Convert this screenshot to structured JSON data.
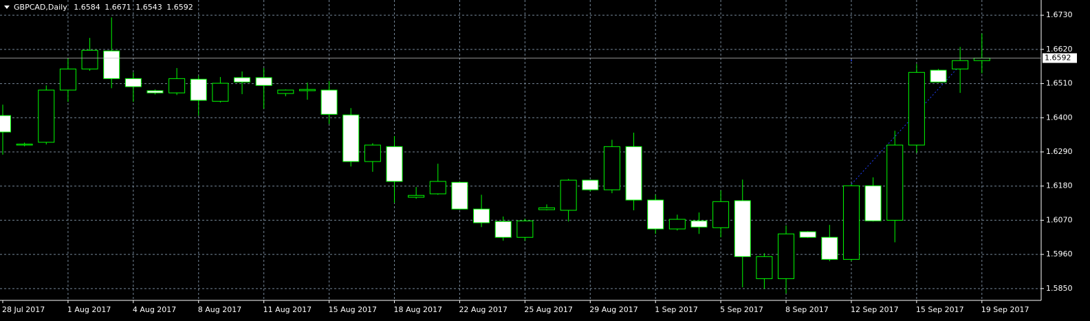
{
  "chart_data": {
    "type": "candlestick",
    "title": "GBPCAD,Daily",
    "categories": [
      "28 Jul 2017",
      null,
      null,
      "1 Aug 2017",
      null,
      null,
      "4 Aug 2017",
      null,
      null,
      "8 Aug 2017",
      null,
      null,
      "11 Aug 2017",
      null,
      null,
      "15 Aug 2017",
      null,
      null,
      "18 Aug 2017",
      null,
      null,
      "22 Aug 2017",
      null,
      null,
      "25 Aug 2017",
      null,
      null,
      "29 Aug 2017",
      null,
      null,
      "1 Sep 2017",
      null,
      null,
      "5 Sep 2017",
      null,
      null,
      "8 Sep 2017",
      null,
      null,
      "12 Sep 2017",
      null,
      null,
      "15 Sep 2017",
      null,
      null,
      "19 Sep 2017"
    ],
    "open": [
      1.6407,
      1.6312,
      1.6321,
      1.6489,
      1.6557,
      1.6615,
      1.6526,
      1.6487,
      1.648,
      1.6524,
      1.6453,
      1.6529,
      1.6529,
      1.6478,
      1.6487,
      1.6489,
      1.6409,
      1.6259,
      1.6307,
      1.6144,
      1.6155,
      1.6192,
      1.6106,
      1.6066,
      1.6015,
      1.6104,
      1.6102,
      1.6199,
      1.6168,
      1.6307,
      1.6135,
      1.6042,
      1.6068,
      1.6046,
      1.6133,
      1.5882,
      1.5882,
      1.6033,
      1.6015,
      1.5944,
      1.6181,
      1.607,
      1.6312,
      1.6553,
      1.6557,
      1.6584
    ],
    "high": [
      1.6442,
      1.632,
      1.6504,
      1.6591,
      1.6657,
      1.6723,
      1.6546,
      1.6491,
      1.656,
      1.6535,
      1.6531,
      1.6549,
      1.656,
      1.6491,
      1.6513,
      1.6518,
      1.6431,
      1.6318,
      1.6341,
      1.6177,
      1.6252,
      1.6195,
      1.6152,
      1.6082,
      1.6075,
      1.6121,
      1.6203,
      1.6199,
      1.6329,
      1.6352,
      1.6152,
      1.6088,
      1.6095,
      1.6166,
      1.6201,
      1.5964,
      1.6053,
      1.6035,
      1.6055,
      1.6186,
      1.6208,
      1.6358,
      1.6573,
      1.6557,
      1.6628,
      1.6671
    ],
    "low": [
      1.6281,
      1.6308,
      1.6314,
      1.6451,
      1.6551,
      1.6495,
      1.6451,
      1.6475,
      1.6473,
      1.6407,
      1.6449,
      1.6476,
      1.6429,
      1.6469,
      1.6458,
      1.638,
      1.6243,
      1.6226,
      1.6126,
      1.6139,
      1.6152,
      1.6104,
      1.6048,
      1.6004,
      1.6004,
      1.6102,
      1.6066,
      1.6163,
      1.6157,
      1.6102,
      1.6026,
      1.6037,
      1.6026,
      1.6015,
      1.5854,
      1.5849,
      1.5834,
      1.6013,
      1.5938,
      1.5938,
      1.6066,
      1.5999,
      1.6287,
      1.6513,
      1.648,
      1.6543
    ],
    "close": [
      1.6354,
      1.6315,
      1.6489,
      1.6557,
      1.6617,
      1.6526,
      1.65,
      1.648,
      1.6526,
      1.6456,
      1.6511,
      1.6515,
      1.6504,
      1.6489,
      1.6491,
      1.6411,
      1.6259,
      1.6312,
      1.6195,
      1.615,
      1.6195,
      1.6106,
      1.6062,
      1.6015,
      1.6068,
      1.611,
      1.6199,
      1.6168,
      1.6307,
      1.6135,
      1.6042,
      1.6073,
      1.6048,
      1.613,
      1.5953,
      1.5953,
      1.6026,
      1.6015,
      1.5944,
      1.6181,
      1.6068,
      1.6312,
      1.6546,
      1.6515,
      1.6584,
      1.6592
    ],
    "ylim": [
      1.5812,
      1.6779
    ],
    "yticks": [
      {
        "value": 1.673,
        "label": "1.6730"
      },
      {
        "value": 1.662,
        "label": "1.6620"
      },
      {
        "value": 1.651,
        "label": "1.6510"
      },
      {
        "value": 1.64,
        "label": "1.6400"
      },
      {
        "value": 1.629,
        "label": "1.6290"
      },
      {
        "value": 1.618,
        "label": "1.6180"
      },
      {
        "value": 1.607,
        "label": "1.6070"
      },
      {
        "value": 1.596,
        "label": "1.5960"
      },
      {
        "value": 1.585,
        "label": "1.5850"
      }
    ],
    "grid": true,
    "bull_color": "#000000",
    "bear_color": "#ffffff",
    "wick_color": "#00ff00"
  }
}
